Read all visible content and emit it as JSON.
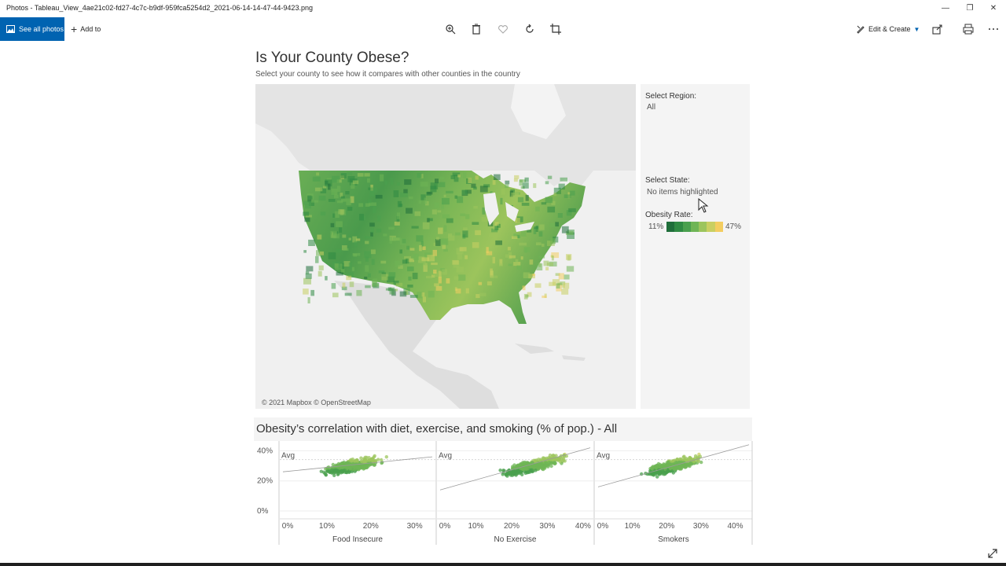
{
  "window": {
    "title": "Photos - Tableau_View_4ae21c02-fd27-4c7c-b9df-959fca5254d2_2021-06-14-14-47-44-9423.png"
  },
  "toolbar": {
    "see_all": "See all photos",
    "add_to": "Add to",
    "edit_create": "Edit & Create",
    "icons": [
      "zoom-icon",
      "delete-icon",
      "favorite-icon",
      "rotate-icon",
      "crop-icon",
      "share-icon",
      "print-icon",
      "more-icon"
    ]
  },
  "dashboard": {
    "title": "Is Your County Obese?",
    "subtitle": "Select your county to see how it compares with other counties in the country",
    "map_credit": "© 2021 Mapbox © OpenStreetMap",
    "region_label": "Select Region:",
    "region_value": "All",
    "state_label": "Select State:",
    "state_value": "No items highlighted",
    "rate_label": "Obesity Rate:",
    "rate_min": "11%",
    "rate_max": "47%",
    "legend_colors": [
      "#1f6e3a",
      "#2f8a43",
      "#4aa04e",
      "#6fb556",
      "#9cc55d",
      "#c9cf62",
      "#f3cd60"
    ],
    "chart_title": "Obesity’s correlation with diet, exercise, and smoking (% of pop.) - All",
    "avg_label": "Avg"
  },
  "chart_data": [
    {
      "type": "scatter",
      "title": "",
      "xlabel": "Food Insecure",
      "ylabel": "",
      "x_ticks": [
        "0%",
        "10%",
        "20%",
        "30%"
      ],
      "y_ticks": [
        "40%",
        "20%",
        "0%"
      ],
      "xlim": [
        0,
        0.34
      ],
      "ylim": [
        0,
        0.47
      ],
      "center": [
        0.16,
        0.3
      ],
      "spread": [
        0.05,
        0.05
      ],
      "trend": [
        [
          0.0,
          0.26
        ],
        [
          0.34,
          0.36
        ]
      ]
    },
    {
      "type": "scatter",
      "title": "",
      "xlabel": "No Exercise",
      "ylabel": "",
      "x_ticks": [
        "0%",
        "10%",
        "20%",
        "30%",
        "40%"
      ],
      "y_ticks": [
        "40%",
        "20%",
        "0%"
      ],
      "xlim": [
        0,
        0.42
      ],
      "ylim": [
        0,
        0.47
      ],
      "center": [
        0.26,
        0.3
      ],
      "spread": [
        0.07,
        0.05
      ],
      "trend": [
        [
          0.0,
          0.14
        ],
        [
          0.42,
          0.42
        ]
      ]
    },
    {
      "type": "scatter",
      "title": "",
      "xlabel": "Smokers",
      "ylabel": "",
      "x_ticks": [
        "0%",
        "10%",
        "20%",
        "30%",
        "40%"
      ],
      "y_ticks": [
        "40%",
        "20%",
        "0%"
      ],
      "xlim": [
        0,
        0.44
      ],
      "ylim": [
        0,
        0.47
      ],
      "center": [
        0.22,
        0.3
      ],
      "spread": [
        0.06,
        0.05
      ],
      "trend": [
        [
          0.0,
          0.16
        ],
        [
          0.44,
          0.44
        ]
      ]
    }
  ]
}
